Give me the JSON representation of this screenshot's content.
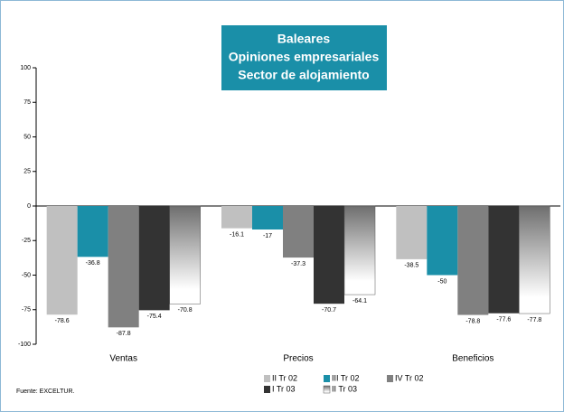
{
  "chart_data": {
    "type": "bar",
    "title": [
      "Baleares",
      "Opiniones empresariales",
      "Sector de alojamiento"
    ],
    "categories": [
      "Ventas",
      "Precios",
      "Beneficios"
    ],
    "series": [
      {
        "name": "II Tr 02",
        "color": "#c0c0c0",
        "values": [
          -78.6,
          -16.1,
          -38.5
        ]
      },
      {
        "name": "III Tr 02",
        "color": "#1a8fa8",
        "values": [
          -36.8,
          -17.0,
          -50.0
        ]
      },
      {
        "name": "IV Tr 02",
        "color": "#808080",
        "values": [
          -87.8,
          -37.3,
          -78.8
        ]
      },
      {
        "name": "I Tr 03",
        "color": "#333333",
        "values": [
          -75.4,
          -70.7,
          -77.6
        ]
      },
      {
        "name": "II Tr 03",
        "color": "#6e6e6e",
        "gradient": true,
        "values": [
          -70.8,
          -64.1,
          -77.8
        ]
      }
    ],
    "ylim": [
      -100,
      100
    ],
    "yticks": [
      -100,
      -75,
      -50,
      -25,
      0,
      25,
      50,
      75,
      100
    ],
    "source": "Fuente: EXCELTUR."
  }
}
